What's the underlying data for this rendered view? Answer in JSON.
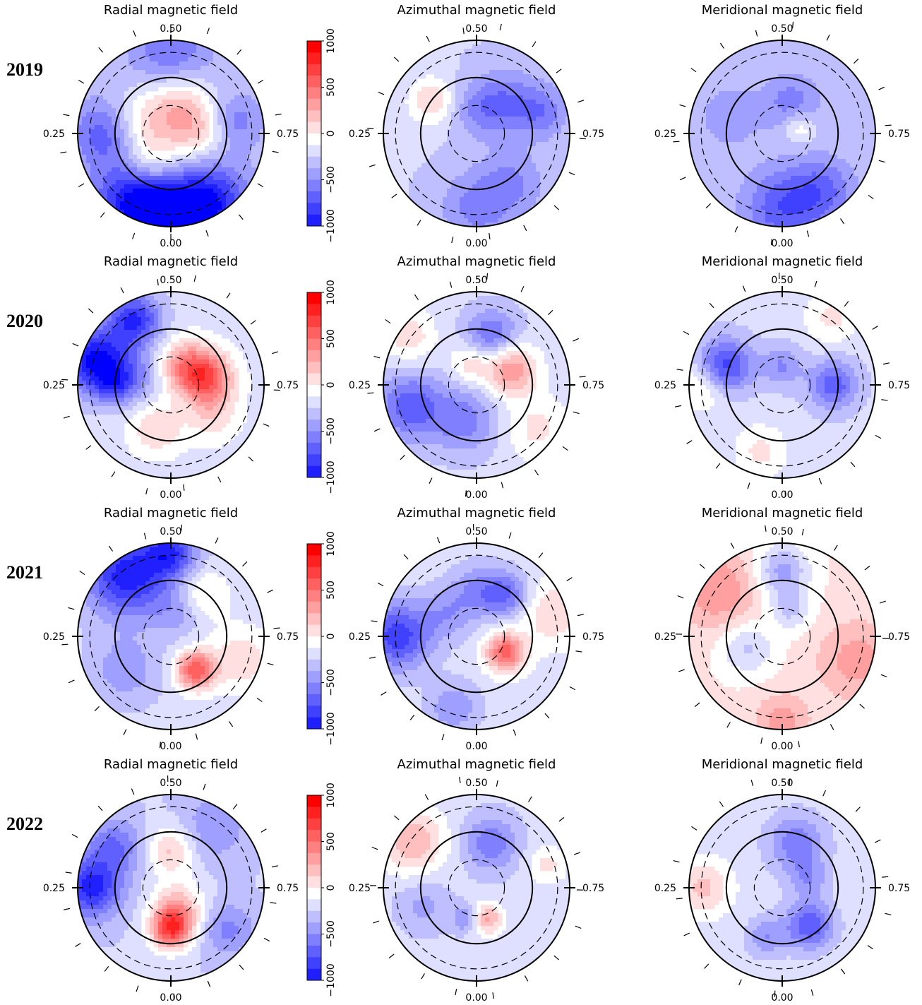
{
  "chart_data": {
    "type": "heatmap",
    "projection": "polar",
    "years": [
      "2019",
      "2020",
      "2021",
      "2022"
    ],
    "panel_titles": [
      "Radial magnetic field",
      "Azimuthal magnetic field",
      "Meridional magnetic field"
    ],
    "phase_labels": {
      "top": "0.50",
      "left": "0.25",
      "right": "0.75",
      "bottom": "0.00"
    },
    "colorbar": {
      "min": -1000,
      "max": 1000,
      "tick_labels": [
        "1000",
        "500",
        "0",
        "−500",
        "−1000"
      ],
      "tick_values": [
        1000,
        500,
        0,
        -500,
        -1000
      ],
      "colors": {
        "negative": "#0000ee",
        "zero": "#ffffff",
        "positive": "#ee0000"
      }
    },
    "maps": [
      {
        "year": "2019",
        "panels": [
          {
            "blobs": [
              [
                0.0,
                0.95,
                0.25,
                -900
              ],
              [
                0.08,
                0.85,
                0.3,
                -700
              ],
              [
                0.92,
                0.85,
                0.3,
                -700
              ],
              [
                0.25,
                0.7,
                0.25,
                -450
              ],
              [
                0.5,
                0.9,
                0.3,
                -350
              ],
              [
                0.72,
                0.7,
                0.2,
                -300
              ],
              [
                0.55,
                0.3,
                0.25,
                420
              ],
              [
                0.3,
                0.35,
                0.25,
                320
              ],
              [
                0.75,
                0.3,
                0.22,
                330
              ],
              [
                0.1,
                0.35,
                0.2,
                280
              ]
            ],
            "base": -220
          },
          {
            "blobs": [
              [
                0.0,
                0.8,
                0.28,
                -300
              ],
              [
                0.62,
                0.45,
                0.25,
                -350
              ],
              [
                0.7,
                0.75,
                0.2,
                -300
              ],
              [
                0.35,
                0.6,
                0.18,
                350
              ],
              [
                0.9,
                0.65,
                0.25,
                -250
              ],
              [
                0.5,
                0.25,
                0.2,
                -200
              ]
            ],
            "base": -180
          },
          {
            "blobs": [
              [
                0.0,
                0.8,
                0.3,
                -450
              ],
              [
                0.9,
                0.75,
                0.25,
                -350
              ],
              [
                0.55,
                0.35,
                0.22,
                -300
              ],
              [
                0.7,
                0.2,
                0.12,
                300
              ],
              [
                0.3,
                0.6,
                0.25,
                -200
              ]
            ],
            "base": -200
          }
        ]
      },
      {
        "year": "2020",
        "panels": [
          {
            "blobs": [
              [
                0.3,
                0.85,
                0.25,
                -850
              ],
              [
                0.42,
                0.8,
                0.2,
                -700
              ],
              [
                0.25,
                0.6,
                0.15,
                -400
              ],
              [
                0.72,
                0.4,
                0.2,
                700
              ],
              [
                0.6,
                0.25,
                0.2,
                500
              ],
              [
                0.3,
                0.35,
                0.2,
                -250
              ],
              [
                0.05,
                0.5,
                0.2,
                300
              ],
              [
                0.85,
                0.55,
                0.2,
                250
              ]
            ],
            "base": -120
          },
          {
            "blobs": [
              [
                0.55,
                0.55,
                0.2,
                -450
              ],
              [
                0.68,
                0.4,
                0.2,
                600
              ],
              [
                0.2,
                0.75,
                0.25,
                -500
              ],
              [
                0.05,
                0.4,
                0.25,
                -350
              ],
              [
                0.35,
                0.9,
                0.2,
                300
              ],
              [
                0.85,
                0.8,
                0.25,
                250
              ],
              [
                0.45,
                0.25,
                0.15,
                300
              ]
            ],
            "base": -150
          },
          {
            "blobs": [
              [
                0.3,
                0.65,
                0.2,
                -650
              ],
              [
                0.75,
                0.55,
                0.18,
                -500
              ],
              [
                0.25,
                0.85,
                0.2,
                300
              ],
              [
                0.6,
                0.9,
                0.2,
                250
              ],
              [
                0.05,
                0.75,
                0.2,
                250
              ],
              [
                0.5,
                0.2,
                0.15,
                -300
              ]
            ],
            "base": -150
          }
        ]
      },
      {
        "year": "2021",
        "panels": [
          {
            "blobs": [
              [
                0.4,
                0.8,
                0.3,
                -750
              ],
              [
                0.5,
                0.9,
                0.2,
                -600
              ],
              [
                0.9,
                0.45,
                0.15,
                800
              ],
              [
                0.8,
                0.8,
                0.25,
                300
              ],
              [
                0.6,
                0.55,
                0.2,
                300
              ],
              [
                0.15,
                0.6,
                0.25,
                -250
              ],
              [
                0.55,
                0.3,
                0.2,
                -250
              ]
            ],
            "base": -150
          },
          {
            "blobs": [
              [
                0.25,
                0.85,
                0.25,
                -650
              ],
              [
                0.83,
                0.35,
                0.15,
                750
              ],
              [
                0.6,
                0.55,
                0.18,
                -450
              ],
              [
                0.7,
                0.85,
                0.25,
                300
              ],
              [
                0.05,
                0.8,
                0.2,
                -300
              ],
              [
                0.5,
                0.5,
                0.2,
                -300
              ],
              [
                0.35,
                0.4,
                0.2,
                -250
              ]
            ],
            "base": -120
          },
          {
            "blobs": [
              [
                0.35,
                0.85,
                0.3,
                350
              ],
              [
                0.8,
                0.85,
                0.3,
                300
              ],
              [
                0.5,
                0.7,
                0.2,
                -450
              ],
              [
                0.2,
                0.4,
                0.2,
                -300
              ],
              [
                0.0,
                0.9,
                0.2,
                300
              ],
              [
                0.55,
                0.3,
                0.15,
                -300
              ]
            ],
            "base": 80
          }
        ]
      },
      {
        "year": "2022",
        "panels": [
          {
            "blobs": [
              [
                0.25,
                0.85,
                0.22,
                -700
              ],
              [
                0.35,
                0.75,
                0.2,
                -400
              ],
              [
                0.0,
                0.45,
                0.15,
                800
              ],
              [
                0.95,
                0.25,
                0.2,
                500
              ],
              [
                0.5,
                0.4,
                0.18,
                400
              ],
              [
                0.6,
                0.8,
                0.25,
                -250
              ],
              [
                0.85,
                0.75,
                0.2,
                -300
              ]
            ],
            "base": -180
          },
          {
            "blobs": [
              [
                0.35,
                0.85,
                0.25,
                450
              ],
              [
                0.95,
                0.35,
                0.12,
                500
              ],
              [
                0.55,
                0.5,
                0.2,
                -400
              ],
              [
                0.05,
                0.35,
                0.1,
                -350
              ],
              [
                0.7,
                0.8,
                0.15,
                250
              ],
              [
                0.2,
                0.6,
                0.2,
                -200
              ]
            ],
            "base": -150
          },
          {
            "blobs": [
              [
                0.25,
                0.85,
                0.2,
                350
              ],
              [
                0.9,
                0.5,
                0.18,
                -550
              ],
              [
                0.55,
                0.5,
                0.22,
                -400
              ],
              [
                0.05,
                0.55,
                0.15,
                -300
              ],
              [
                0.7,
                0.3,
                0.15,
                -250
              ]
            ],
            "base": -120
          }
        ]
      }
    ]
  }
}
